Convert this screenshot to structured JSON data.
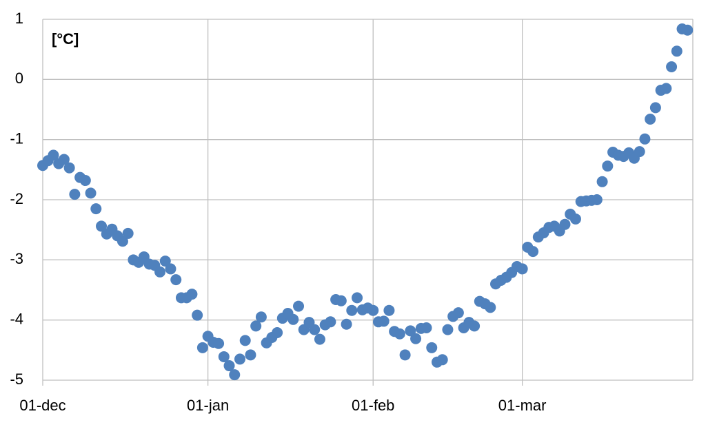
{
  "chart_data": {
    "type": "scatter",
    "annotation": "[°C]",
    "x": [
      0,
      1,
      2,
      3,
      4,
      5,
      6,
      7,
      8,
      9,
      10,
      11,
      12,
      13,
      14,
      15,
      16,
      17,
      18,
      19,
      20,
      21,
      22,
      23,
      24,
      25,
      26,
      27,
      28,
      29,
      30,
      31,
      32,
      33,
      34,
      35,
      36,
      37,
      38,
      39,
      40,
      41,
      42,
      43,
      44,
      45,
      46,
      47,
      48,
      49,
      50,
      51,
      52,
      53,
      54,
      55,
      56,
      57,
      58,
      59,
      60,
      61,
      62,
      63,
      64,
      65,
      66,
      67,
      68,
      69,
      70,
      71,
      72,
      73,
      74,
      75,
      76,
      77,
      78,
      79,
      80,
      81,
      82,
      83,
      84,
      85,
      86,
      87,
      88,
      89,
      90,
      91,
      92,
      93,
      94,
      95,
      96,
      97,
      98,
      99,
      100,
      101,
      102,
      103,
      104,
      105,
      106,
      107,
      108,
      109,
      110,
      111,
      112,
      113,
      114,
      115,
      116,
      117,
      118,
      119,
      120,
      121
    ],
    "values": [
      -1.43,
      -1.35,
      -1.26,
      -1.4,
      -1.33,
      -1.47,
      -1.91,
      -1.63,
      -1.68,
      -1.89,
      -2.15,
      -2.44,
      -2.57,
      -2.49,
      -2.6,
      -2.69,
      -2.56,
      -3.0,
      -3.04,
      -2.95,
      -3.07,
      -3.09,
      -3.2,
      -3.02,
      -3.15,
      -3.33,
      -3.63,
      -3.63,
      -3.57,
      -3.92,
      -4.46,
      -4.27,
      -4.37,
      -4.39,
      -4.61,
      -4.76,
      -4.91,
      -4.65,
      -4.34,
      -4.58,
      -4.1,
      -3.95,
      -4.38,
      -4.29,
      -4.21,
      -3.97,
      -3.89,
      -3.99,
      -3.77,
      -4.16,
      -4.04,
      -4.16,
      -4.32,
      -4.08,
      -4.03,
      -3.66,
      -3.68,
      -4.07,
      -3.84,
      -3.63,
      -3.83,
      -3.8,
      -3.84,
      -4.03,
      -4.02,
      -3.84,
      -4.19,
      -4.23,
      -4.58,
      -4.18,
      -4.31,
      -4.14,
      -4.13,
      -4.46,
      -4.7,
      -4.66,
      -4.16,
      -3.94,
      -3.88,
      -4.13,
      -4.04,
      -4.1,
      -3.69,
      -3.73,
      -3.79,
      -3.4,
      -3.34,
      -3.29,
      -3.21,
      -3.11,
      -3.15,
      -2.79,
      -2.86,
      -2.62,
      -2.55,
      -2.46,
      -2.44,
      -2.52,
      -2.41,
      -2.24,
      -2.32,
      -2.03,
      -2.02,
      -2.01,
      -2.0,
      -1.7,
      -1.44,
      -1.21,
      -1.26,
      -1.28,
      -1.22,
      -1.31,
      -1.2,
      -0.99,
      -0.66,
      -0.47,
      -0.18,
      -0.15,
      0.21,
      0.47,
      0.84,
      0.82
    ],
    "color": "#4f81bd",
    "xlim": [
      0,
      122
    ],
    "xticks": [
      {
        "value": 0,
        "label": "01-dec"
      },
      {
        "value": 31,
        "label": "01-jan"
      },
      {
        "value": 62,
        "label": "01-feb"
      },
      {
        "value": 90,
        "label": "01-mar"
      }
    ],
    "ylim": [
      -5,
      1
    ],
    "yticks": [
      -5,
      -4,
      -3,
      -2,
      -1,
      0,
      1
    ],
    "grid": true
  }
}
